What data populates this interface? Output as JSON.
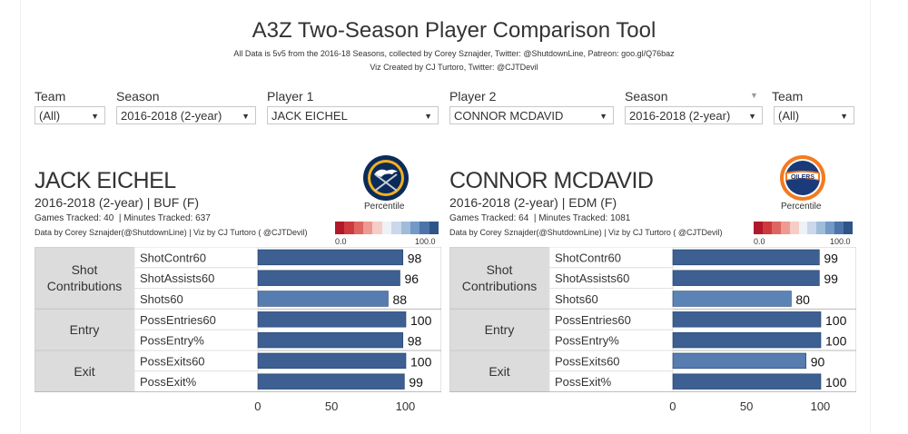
{
  "title": "A3Z Two-Season Player Comparison Tool",
  "subtitle1": "All Data is 5v5 from the 2016-18 Seasons, collected by Corey Sznajder, Twitter: @ShutdownLine, Patreon: goo.gl/Q76baz",
  "subtitle2": "Viz Created by CJ Turtoro, Twitter: @CJTDevil",
  "filters": [
    {
      "label": "Team",
      "value": "(All)"
    },
    {
      "label": "Season",
      "value": "2016-2018 (2-year)"
    },
    {
      "label": "Player 1",
      "value": "JACK EICHEL"
    },
    {
      "label": "Player 2",
      "value": "CONNOR MCDAVID"
    },
    {
      "label": "Season",
      "value": "2016-2018 (2-year)"
    },
    {
      "label": "Team",
      "value": "(All)"
    }
  ],
  "legend": {
    "label": "Percentile",
    "min": "0.0",
    "max": "100.0",
    "colors": [
      "#b2182b",
      "#cc3a3e",
      "#de6661",
      "#ec9a92",
      "#f6cdc6",
      "#eef2f7",
      "#c9d8ea",
      "#9fbcdb",
      "#7399c6",
      "#4d74a8",
      "#2f5487"
    ]
  },
  "players": [
    {
      "name": "JACK EICHEL",
      "season_team": "2016-2018 (2-year) | BUF (F)",
      "games": "Games Tracked: 40  | Minutes Tracked: 637",
      "credit": "Data by Corey Sznajder(@ShutdownLine) | Viz by CJ Turtoro ( @CJTDevil)",
      "logo": "sabres-logo-icon"
    },
    {
      "name": "CONNOR MCDAVID",
      "season_team": "2016-2018 (2-year) | EDM (F)",
      "games": "Games Tracked: 64  | Minutes Tracked: 1081",
      "credit": "Data by Corey Sznajder(@ShutdownLine) | Viz by CJ Turtoro ( @CJTDevil)",
      "logo": "oilers-logo-icon"
    }
  ],
  "chart_data": [
    {
      "type": "bar",
      "player": "JACK EICHEL",
      "groups": [
        {
          "name": "Shot Contributions",
          "categories": [
            "ShotContr60",
            "ShotAssists60",
            "Shots60"
          ]
        },
        {
          "name": "Entry",
          "categories": [
            "PossEntries60",
            "PossEntry%"
          ]
        },
        {
          "name": "Exit",
          "categories": [
            "PossExits60",
            "PossExit%"
          ]
        }
      ],
      "categories": [
        "ShotContr60",
        "ShotAssists60",
        "Shots60",
        "PossEntries60",
        "PossEntry%",
        "PossExits60",
        "PossExit%"
      ],
      "values": [
        98,
        96,
        88,
        100,
        98,
        100,
        99
      ],
      "xticks": [
        0,
        50,
        100
      ],
      "xlim": [
        0,
        100
      ]
    },
    {
      "type": "bar",
      "player": "CONNOR MCDAVID",
      "groups": [
        {
          "name": "Shot Contributions",
          "categories": [
            "ShotContr60",
            "ShotAssists60",
            "Shots60"
          ]
        },
        {
          "name": "Entry",
          "categories": [
            "PossEntries60",
            "PossEntry%"
          ]
        },
        {
          "name": "Exit",
          "categories": [
            "PossExits60",
            "PossExit%"
          ]
        }
      ],
      "categories": [
        "ShotContr60",
        "ShotAssists60",
        "Shots60",
        "PossEntries60",
        "PossEntry%",
        "PossExits60",
        "PossExit%"
      ],
      "values": [
        99,
        99,
        80,
        100,
        100,
        90,
        100
      ],
      "xticks": [
        0,
        50,
        100
      ],
      "xlim": [
        0,
        100
      ]
    }
  ]
}
